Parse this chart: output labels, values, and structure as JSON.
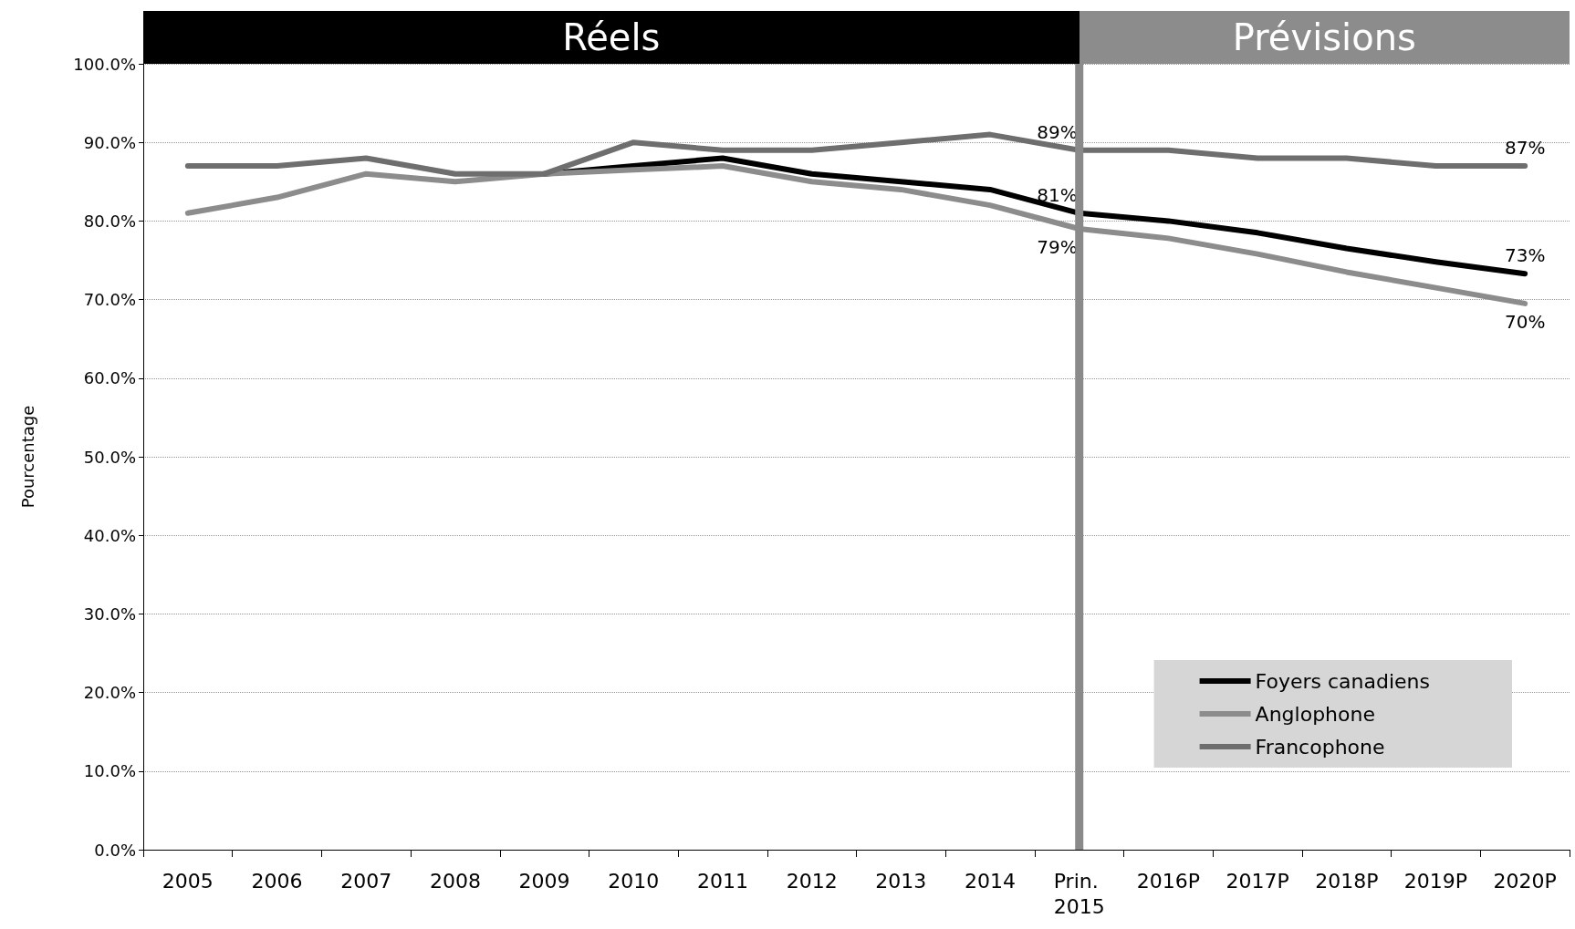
{
  "chart_data": {
    "type": "line",
    "ylabel": "Pourcentage",
    "categories": [
      "2005",
      "2006",
      "2007",
      "2008",
      "2009",
      "2010",
      "2011",
      "2012",
      "2013",
      "2014",
      "Prin. 2015",
      "2016P",
      "2017P",
      "2018P",
      "2019P",
      "2020P"
    ],
    "series": [
      {
        "name": "Foyers canadiens",
        "color": "#000000",
        "values": [
          null,
          null,
          null,
          null,
          86,
          87,
          88,
          86,
          85,
          84,
          81,
          80,
          78.5,
          76.5,
          74.8,
          73.3
        ],
        "value_labels": [
          null,
          null,
          null,
          null,
          null,
          null,
          null,
          null,
          null,
          null,
          "81%",
          null,
          null,
          null,
          null,
          "73%"
        ]
      },
      {
        "name": "Anglophone",
        "color": "#8c8c8c",
        "values": [
          81,
          83,
          86,
          85,
          86,
          86.5,
          87,
          85,
          84,
          82,
          79,
          77.8,
          75.8,
          73.5,
          71.5,
          69.5
        ],
        "value_labels": [
          null,
          null,
          null,
          null,
          null,
          null,
          null,
          null,
          null,
          null,
          "79%",
          null,
          null,
          null,
          null,
          "70%"
        ]
      },
      {
        "name": "Francophone",
        "color": "#6e6e6e",
        "values": [
          87,
          87,
          88,
          86,
          86,
          90,
          89,
          89,
          90,
          91,
          89,
          89,
          88,
          88,
          87,
          87
        ],
        "value_labels": [
          null,
          null,
          null,
          null,
          null,
          null,
          null,
          null,
          null,
          null,
          "89%",
          null,
          null,
          null,
          null,
          "87%"
        ]
      }
    ],
    "ylim": [
      0,
      100
    ],
    "yticks": [
      {
        "value": 0,
        "label": "0.0%"
      },
      {
        "value": 10,
        "label": "10.0%"
      },
      {
        "value": 20,
        "label": "20.0%"
      },
      {
        "value": 30,
        "label": "30.0%"
      },
      {
        "value": 40,
        "label": "40.0%"
      },
      {
        "value": 50,
        "label": "50.0%"
      },
      {
        "value": 60,
        "label": "60.0%"
      },
      {
        "value": 70,
        "label": "70.0%"
      },
      {
        "value": 80,
        "label": "80.0%"
      },
      {
        "value": 90,
        "label": "90.0%"
      },
      {
        "value": 100,
        "label": "100.0%"
      }
    ],
    "grid": "y",
    "legend": "bottom right",
    "marker": "none",
    "line_style": "solid",
    "ref_lines": [
      {
        "axis": "x",
        "value": "Prin. 2015",
        "color": "#8a8a8a"
      }
    ],
    "annotations": [
      "Réels",
      "Prévisions"
    ]
  }
}
